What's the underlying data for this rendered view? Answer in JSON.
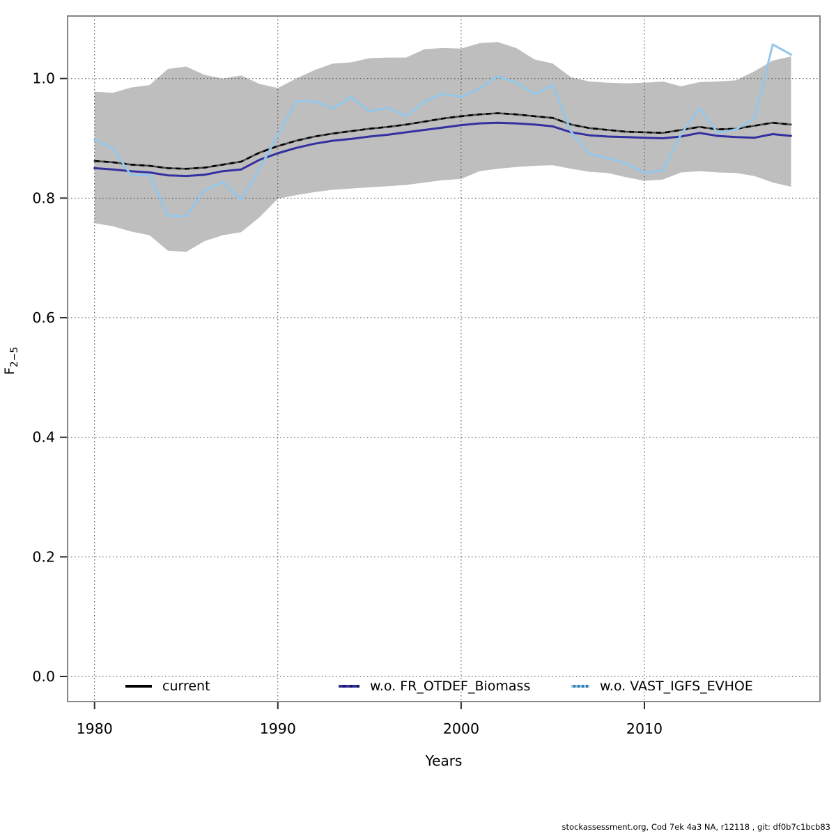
{
  "style": {
    "background": "#ffffff",
    "band_fill": "#bebebe",
    "grid_color": "#3c3c3c",
    "border_color": "#868686",
    "tick_color": "#2b2b2b",
    "text_color": "#000000"
  },
  "y_axis": {
    "label_main": "F",
    "label_sub": "2−5",
    "ticks": [
      {
        "label": "0.0",
        "value": 0.0
      },
      {
        "label": "0.2",
        "value": 0.2
      },
      {
        "label": "0.4",
        "value": 0.4
      },
      {
        "label": "0.6",
        "value": 0.6
      },
      {
        "label": "0.8",
        "value": 0.8
      },
      {
        "label": "1.0",
        "value": 1.0
      }
    ]
  },
  "x_axis": {
    "label": "Years",
    "ticks": [
      {
        "label": "1980",
        "value": 1980
      },
      {
        "label": "1990",
        "value": 1990
      },
      {
        "label": "2000",
        "value": 2000
      },
      {
        "label": "2010",
        "value": 2010
      }
    ]
  },
  "footer": "stockassessment.org, Cod 7ek 4a3 NA, r12118 , git: df0b7c1bcb83",
  "chart_data": {
    "type": "line",
    "title": "",
    "xlabel": "Years",
    "ylabel": "F_2-5",
    "xlim": [
      1978.5,
      2019.6
    ],
    "ylim": [
      -0.04,
      1.1
    ],
    "grid": true,
    "legend_position": "bottom",
    "x": [
      1980,
      1981,
      1982,
      1983,
      1984,
      1985,
      1986,
      1987,
      1988,
      1989,
      1990,
      1991,
      1992,
      1993,
      1994,
      1995,
      1996,
      1997,
      1998,
      1999,
      2000,
      2001,
      2002,
      2003,
      2004,
      2005,
      2006,
      2007,
      2008,
      2009,
      2010,
      2011,
      2012,
      2013,
      2014,
      2015,
      2016,
      2017,
      2018
    ],
    "series": [
      {
        "name": "current",
        "color": "#4a4a4a",
        "dash_overlay": "#000000",
        "width": 2.6,
        "values": [
          0.862,
          0.86,
          0.856,
          0.854,
          0.85,
          0.849,
          0.851,
          0.856,
          0.861,
          0.876,
          0.887,
          0.896,
          0.903,
          0.908,
          0.912,
          0.916,
          0.919,
          0.923,
          0.928,
          0.933,
          0.937,
          0.94,
          0.942,
          0.94,
          0.937,
          0.934,
          0.923,
          0.917,
          0.914,
          0.911,
          0.91,
          0.909,
          0.914,
          0.919,
          0.915,
          0.916,
          0.921,
          0.926,
          0.923
        ]
      },
      {
        "name": "w.o. FR_OTDEF_Biomass",
        "color": "#3330a0",
        "legend_dash": "#191566",
        "width": 3,
        "values": [
          0.85,
          0.848,
          0.845,
          0.843,
          0.838,
          0.837,
          0.839,
          0.845,
          0.848,
          0.864,
          0.875,
          0.884,
          0.891,
          0.896,
          0.899,
          0.903,
          0.906,
          0.91,
          0.914,
          0.918,
          0.922,
          0.925,
          0.926,
          0.925,
          0.923,
          0.92,
          0.91,
          0.905,
          0.903,
          0.902,
          0.901,
          0.9,
          0.903,
          0.909,
          0.904,
          0.902,
          0.901,
          0.907,
          0.904
        ]
      },
      {
        "name": "w.o. VAST_IGFS_EVHOE",
        "color": "#93c7ea",
        "legend_dash": "#2f74a8",
        "width": 3,
        "values": [
          0.898,
          0.883,
          0.838,
          0.839,
          0.77,
          0.77,
          0.813,
          0.827,
          0.797,
          0.849,
          0.905,
          0.962,
          0.962,
          0.95,
          0.969,
          0.945,
          0.951,
          0.937,
          0.961,
          0.975,
          0.969,
          0.983,
          1.004,
          0.993,
          0.974,
          0.989,
          0.911,
          0.874,
          0.867,
          0.858,
          0.842,
          0.846,
          0.907,
          0.95,
          0.909,
          0.915,
          0.933,
          1.057,
          1.04
        ]
      }
    ],
    "band": {
      "name": "current confidence interval",
      "upper": [
        0.978,
        0.976,
        0.985,
        0.989,
        1.016,
        1.02,
        1.006,
        1.0,
        1.005,
        0.991,
        0.984,
        1.0,
        1.014,
        1.025,
        1.027,
        1.034,
        1.035,
        1.035,
        1.049,
        1.051,
        1.05,
        1.059,
        1.061,
        1.051,
        1.032,
        1.025,
        1.002,
        0.995,
        0.993,
        0.992,
        0.993,
        0.995,
        0.987,
        0.994,
        0.995,
        0.997,
        1.012,
        1.03,
        1.037
      ],
      "lower": [
        0.758,
        0.753,
        0.744,
        0.738,
        0.712,
        0.71,
        0.728,
        0.738,
        0.743,
        0.768,
        0.799,
        0.805,
        0.81,
        0.814,
        0.816,
        0.818,
        0.82,
        0.822,
        0.826,
        0.83,
        0.832,
        0.845,
        0.849,
        0.852,
        0.854,
        0.855,
        0.849,
        0.844,
        0.842,
        0.835,
        0.829,
        0.831,
        0.843,
        0.845,
        0.843,
        0.842,
        0.837,
        0.826,
        0.819
      ]
    }
  }
}
